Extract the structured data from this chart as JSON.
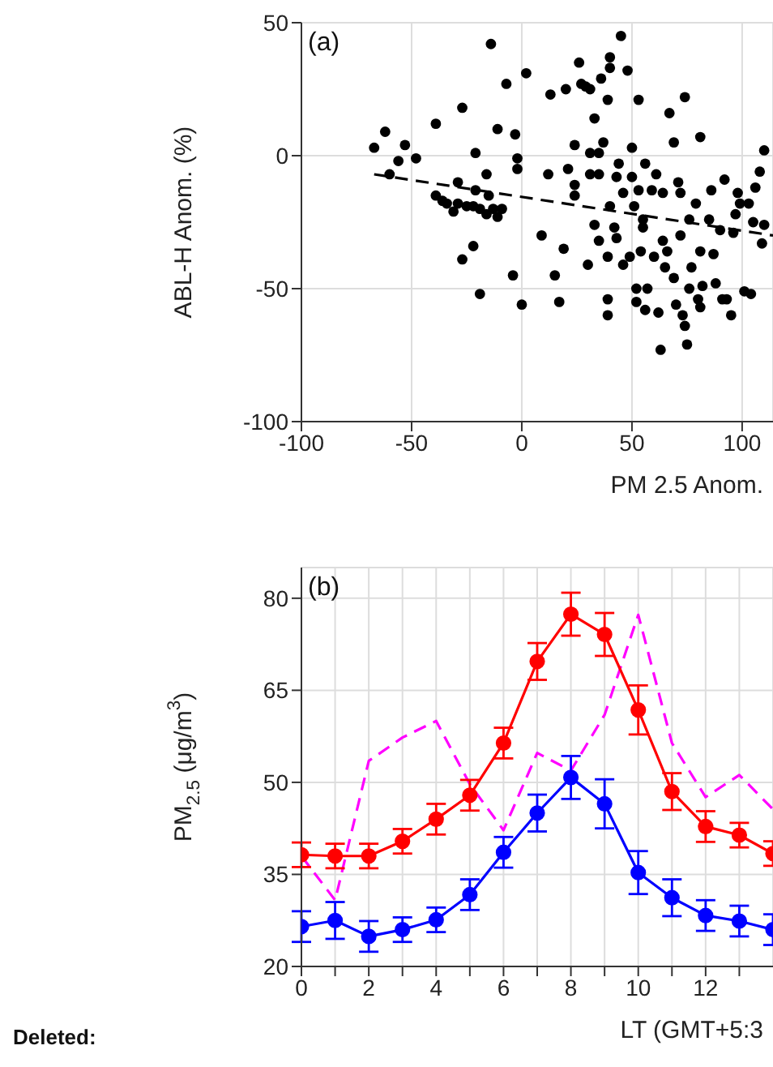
{
  "chart_data": [
    {
      "type": "scatter",
      "xlabel": "PM 2.5 Anom.",
      "ylabel": "ABL-H Anom. (%)",
      "annotations": [
        "(a)"
      ],
      "xlim": [
        -100,
        114
      ],
      "ylim": [
        -100,
        50
      ],
      "xticks": [
        -100,
        -50,
        0,
        50,
        100
      ],
      "yticks": [
        -100,
        -50,
        0,
        50
      ],
      "grid": true,
      "series": [
        {
          "color": "#000000",
          "marker": "circle",
          "x": [
            -67,
            -62,
            -60,
            -56,
            -53,
            -48,
            -39,
            -39,
            -36,
            -34,
            -31,
            -29,
            -27,
            -29,
            -27,
            -25,
            -22,
            -22,
            -21,
            -21,
            -19,
            -19,
            -16,
            -16,
            -15,
            -14,
            -13,
            -11,
            -11,
            -9,
            -7,
            -4,
            -3,
            -2,
            -2,
            0,
            2,
            9,
            12,
            13,
            15,
            17,
            19,
            20,
            21,
            24,
            24,
            24,
            26,
            27,
            29,
            30,
            31,
            31,
            31,
            33,
            33,
            35,
            35,
            35,
            36,
            37,
            39,
            39,
            39,
            39,
            40,
            40,
            40,
            42,
            43,
            43,
            44,
            45,
            46,
            46,
            48,
            49,
            50,
            50,
            51,
            52,
            52,
            53,
            53,
            54,
            55,
            55,
            56,
            56,
            57,
            59,
            60,
            61,
            62,
            63,
            64,
            64,
            65,
            66,
            67,
            69,
            69,
            70,
            71,
            72,
            72,
            73,
            74,
            74,
            75,
            76,
            76,
            77,
            79,
            80,
            81,
            81,
            81,
            82,
            85,
            86,
            87,
            88,
            90,
            91,
            92,
            93,
            95,
            96,
            97,
            98,
            99,
            101,
            103,
            104,
            105,
            106,
            108,
            109,
            110,
            110
          ],
          "values": [
            3,
            9,
            -7,
            -2,
            4,
            -1,
            12,
            -15,
            -17,
            -18,
            -21,
            -18,
            18,
            -10,
            -39,
            -19,
            -19,
            -34,
            1,
            -13,
            -52,
            -20,
            -22,
            -7,
            -15,
            42,
            -20,
            10,
            -23,
            -20,
            27,
            -45,
            8,
            -1,
            -5,
            -56,
            31,
            -30,
            -7,
            23,
            -45,
            -55,
            -35,
            25,
            -5,
            4,
            -15,
            -11,
            35,
            27,
            26,
            -41,
            25,
            1,
            -7,
            -26,
            14,
            -7,
            1,
            -32,
            29,
            5,
            -54,
            -60,
            -38,
            21,
            37,
            -19,
            33,
            -27,
            -31,
            -8,
            -3,
            45,
            -14,
            -41,
            32,
            -38,
            3,
            -8,
            -19,
            -55,
            -50,
            21,
            -13,
            -36,
            -24,
            -27,
            -3,
            -58,
            -50,
            -13,
            -38,
            -7,
            -59,
            -73,
            -32,
            -14,
            -42,
            -36,
            16,
            5,
            -46,
            -56,
            -10,
            -14,
            -30,
            -60,
            22,
            -64,
            -71,
            -24,
            -50,
            -42,
            -18,
            -54,
            -57,
            7,
            -36,
            -49,
            -24,
            -13,
            -37,
            -48,
            -28,
            -54,
            -9,
            -54,
            -60,
            -29,
            -22,
            -14,
            -18,
            -51,
            -18,
            -52,
            -25,
            -12,
            -6,
            -33,
            2,
            -26
          ]
        },
        {
          "type": "line",
          "color": "#000000",
          "line_style": "dashed",
          "marker": "none",
          "x": [
            -67,
            114
          ],
          "values": [
            -7,
            -30
          ]
        }
      ]
    },
    {
      "type": "line",
      "xlabel": "LT (GMT+5:3",
      "ylabel": "PM$_{2.5}$ (μg/m$^{3}$)",
      "annotations": [
        "(b)",
        "Deleted:"
      ],
      "x": [
        0,
        1,
        2,
        3,
        4,
        5,
        6,
        7,
        8,
        9,
        10,
        11,
        12,
        13,
        14
      ],
      "xlim": [
        0,
        14
      ],
      "ylim": [
        20,
        85
      ],
      "xticks": [
        0,
        {
          "value": 1,
          "label": null
        },
        2,
        {
          "value": 3,
          "label": null
        },
        4,
        {
          "value": 5,
          "label": null
        },
        6,
        {
          "value": 7,
          "label": null
        },
        8,
        {
          "value": 9,
          "label": null
        },
        10,
        {
          "value": 11,
          "label": null
        },
        12,
        {
          "value": 13,
          "label": null
        }
      ],
      "yticks": [
        20,
        35,
        50,
        65,
        80
      ],
      "grid": true,
      "series": [
        {
          "color": "#ff00ff",
          "line_style": "dashed",
          "marker": "none",
          "values": [
            38,
            30.8,
            53.5,
            57.3,
            60,
            49.7,
            42.2,
            54.8,
            51.9,
            61,
            77.3,
            56.4,
            47.6,
            51.2,
            45.6
          ]
        },
        {
          "color": "#ff0000",
          "line_style": "solid",
          "marker": "circle",
          "values": [
            38.2,
            38,
            38,
            40.4,
            44,
            47.9,
            56.4,
            69.7,
            77.4,
            74.1,
            61.8,
            48.5,
            42.8,
            41.4,
            38.4
          ],
          "errors": [
            2,
            2,
            2,
            2,
            2.5,
            2.5,
            2.5,
            3,
            3.5,
            3.5,
            4,
            3,
            2.5,
            2,
            2
          ]
        },
        {
          "color": "#0000ff",
          "line_style": "solid",
          "marker": "circle",
          "values": [
            26.5,
            27.5,
            24.9,
            26,
            27.6,
            31.7,
            38.6,
            45,
            50.8,
            46.5,
            35.3,
            31.2,
            28.3,
            27.4,
            26
          ],
          "errors": [
            2.5,
            3,
            2.5,
            2,
            2,
            2.5,
            2.5,
            3,
            3.5,
            4,
            3.5,
            3,
            2.5,
            2.5,
            2.5
          ]
        }
      ]
    }
  ]
}
